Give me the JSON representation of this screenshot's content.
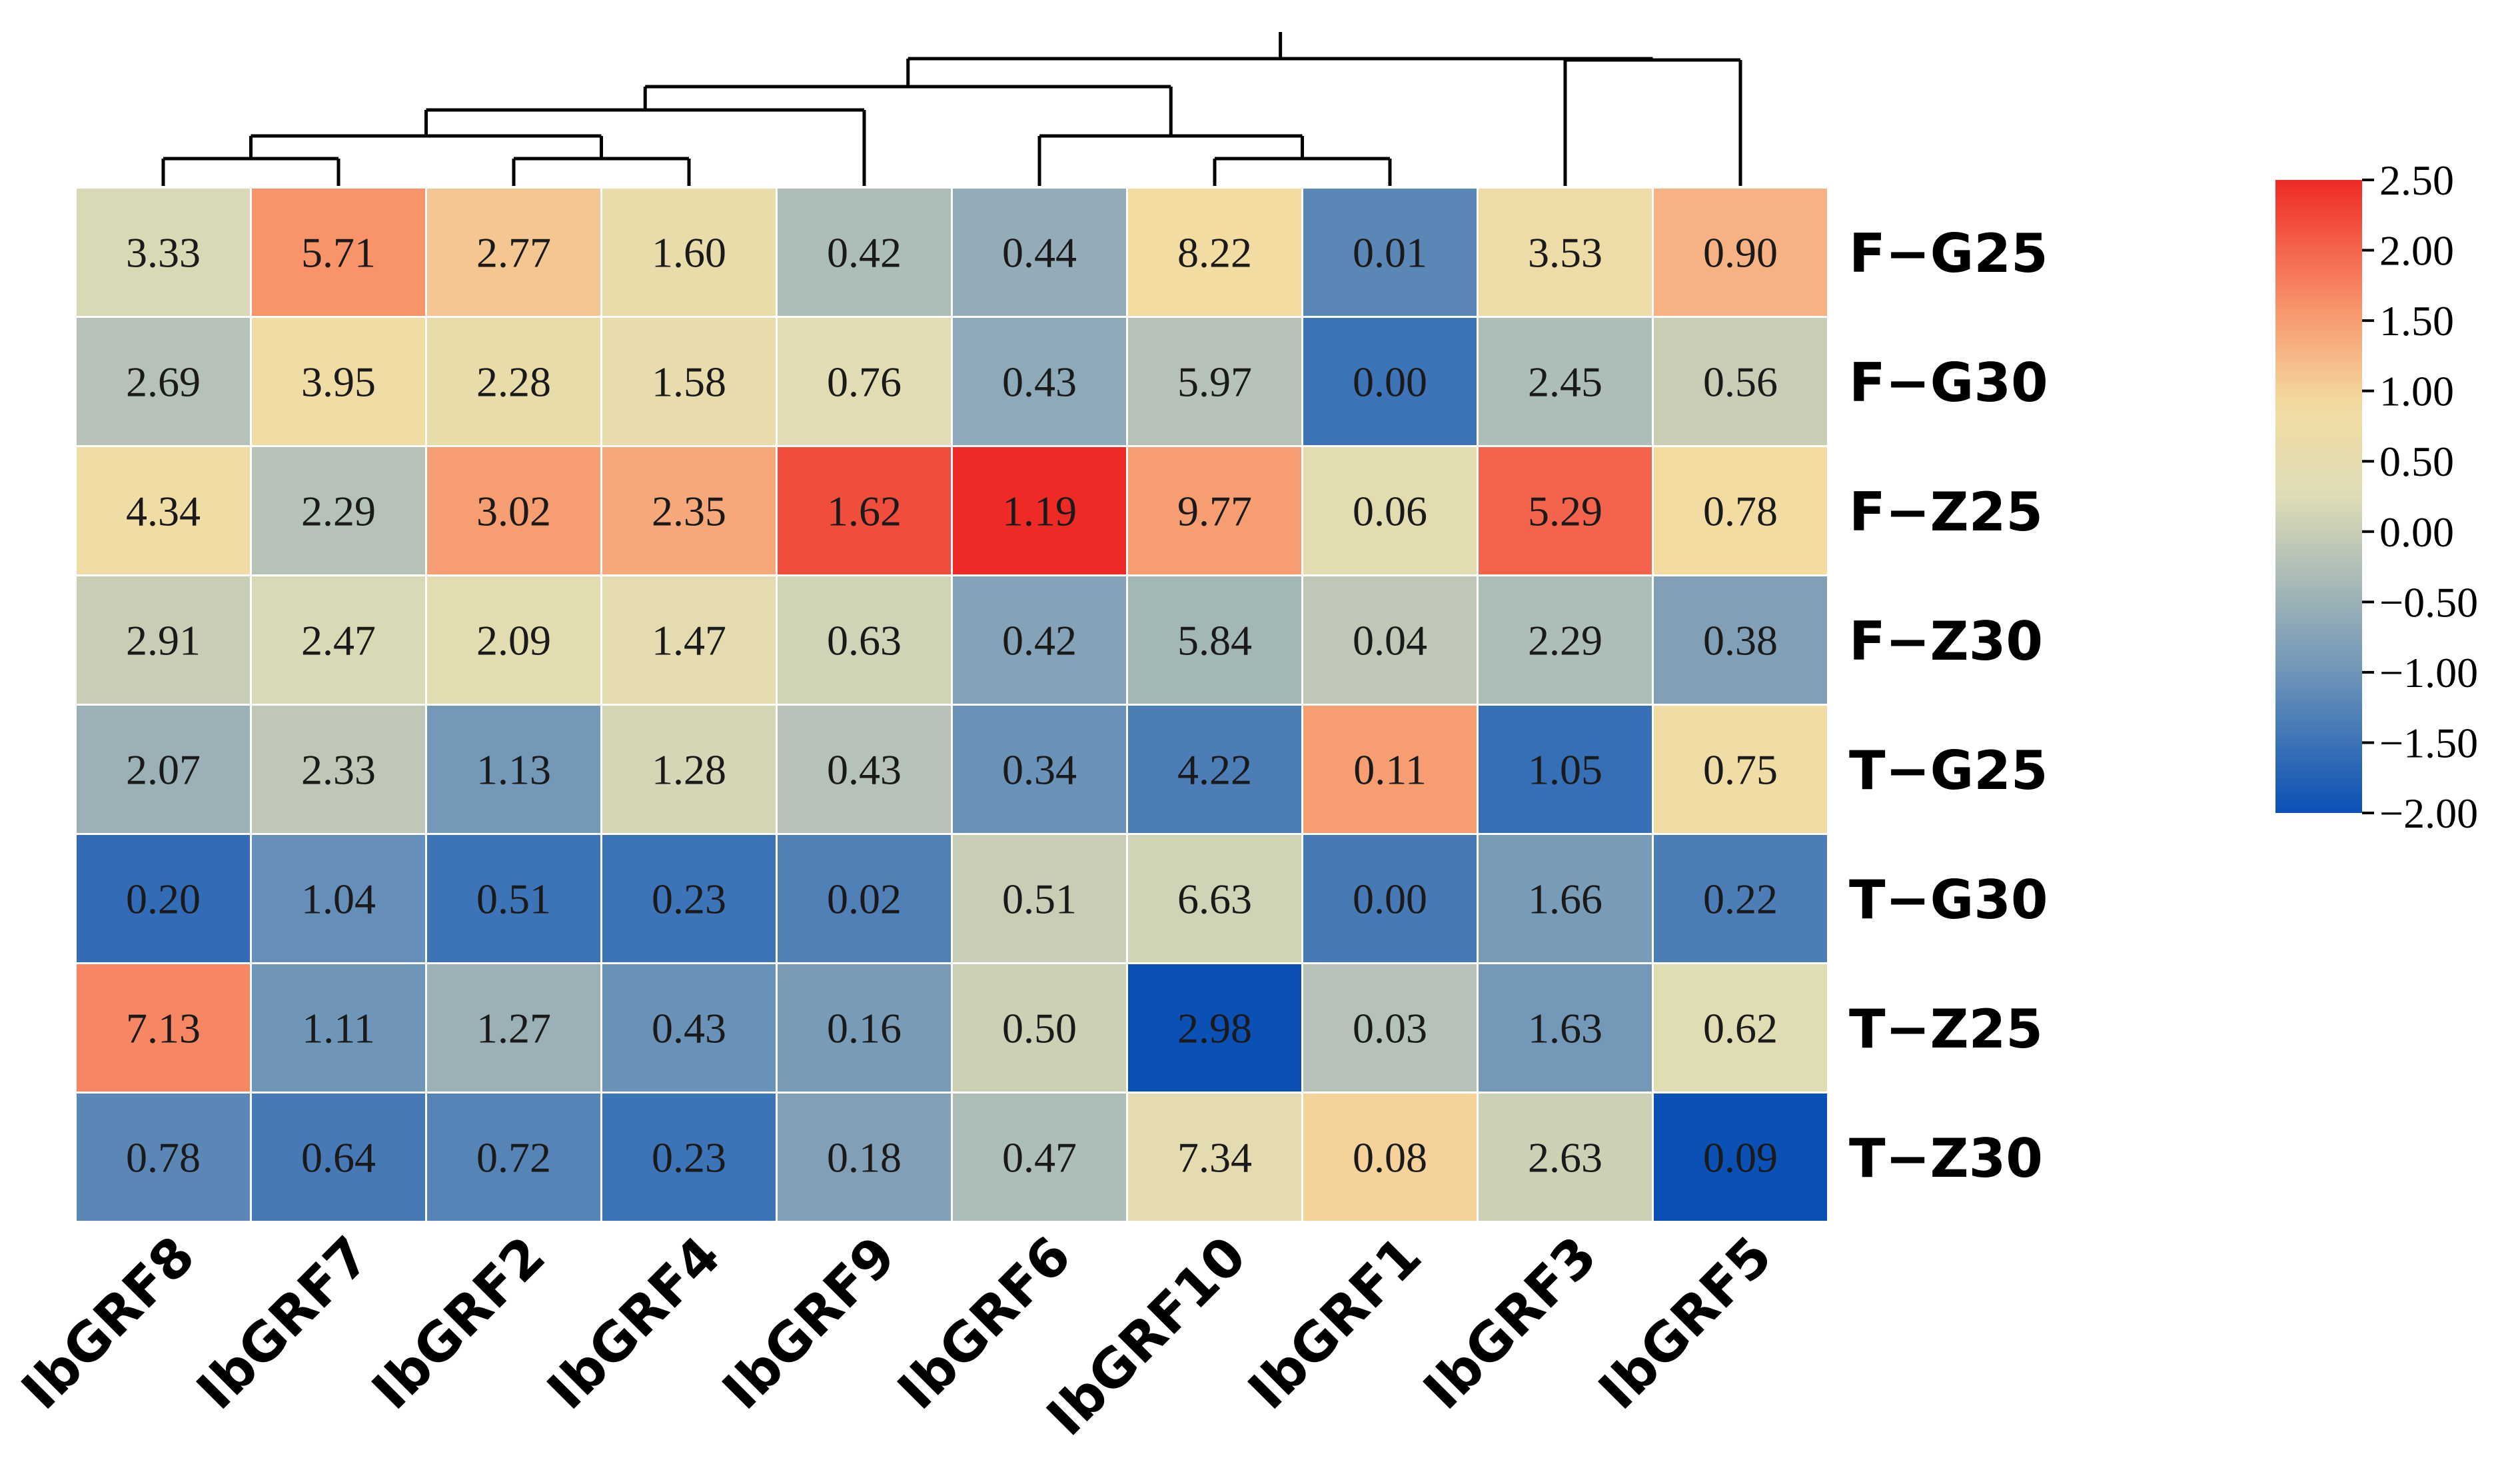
{
  "chart_data": {
    "type": "heatmap",
    "title": "",
    "rows": [
      "F−G25",
      "F−G30",
      "F−Z25",
      "F−Z30",
      "T−G25",
      "T−G30",
      "T−Z25",
      "T−Z30"
    ],
    "columns": [
      "IbGRF8",
      "IbGRF7",
      "IbGRF2",
      "IbGRF4",
      "IbGRF9",
      "IbGRF6",
      "IbGRF10",
      "IbGRF1",
      "IbGRF3",
      "IbGRF5"
    ],
    "values": [
      [
        "3.33",
        "5.71",
        "2.77",
        "1.60",
        "0.42",
        "0.44",
        "8.22",
        "0.01",
        "3.53",
        "0.90"
      ],
      [
        "2.69",
        "3.95",
        "2.28",
        "1.58",
        "0.76",
        "0.43",
        "5.97",
        "0.00",
        "2.45",
        "0.56"
      ],
      [
        "4.34",
        "2.29",
        "3.02",
        "2.35",
        "1.62",
        "1.19",
        "9.77",
        "0.06",
        "5.29",
        "0.78"
      ],
      [
        "2.91",
        "2.47",
        "2.09",
        "1.47",
        "0.63",
        "0.42",
        "5.84",
        "0.04",
        "2.29",
        "0.38"
      ],
      [
        "2.07",
        "2.33",
        "1.13",
        "1.28",
        "0.43",
        "0.34",
        "4.22",
        "0.11",
        "1.05",
        "0.75"
      ],
      [
        "0.20",
        "1.04",
        "0.51",
        "0.23",
        "0.02",
        "0.51",
        "6.63",
        "0.00",
        "1.66",
        "0.22"
      ],
      [
        "7.13",
        "1.11",
        "1.27",
        "0.43",
        "0.16",
        "0.50",
        "2.98",
        "0.03",
        "1.63",
        "0.62"
      ],
      [
        "0.78",
        "0.64",
        "0.72",
        "0.23",
        "0.18",
        "0.47",
        "7.34",
        "0.08",
        "2.63",
        "0.09"
      ]
    ],
    "color_scores": [
      [
        0.2,
        1.6,
        1.1,
        0.6,
        -0.3,
        -0.6,
        0.9,
        -1.2,
        0.7,
        1.3
      ],
      [
        -0.2,
        0.8,
        0.6,
        0.55,
        0.35,
        -0.65,
        -0.2,
        -1.5,
        -0.3,
        0.0
      ],
      [
        0.8,
        -0.2,
        1.5,
        1.4,
        2.2,
        2.5,
        1.5,
        0.4,
        2.0,
        0.9
      ],
      [
        0.0,
        0.2,
        0.4,
        0.45,
        0.1,
        -0.75,
        -0.4,
        -0.1,
        -0.3,
        -0.8
      ],
      [
        -0.5,
        -0.1,
        -0.95,
        0.15,
        -0.2,
        -1.05,
        -1.35,
        1.5,
        -1.55,
        0.8
      ],
      [
        -1.6,
        -1.1,
        -1.5,
        -1.5,
        -1.3,
        0.0,
        0.1,
        -1.4,
        -0.9,
        -1.35
      ],
      [
        1.7,
        -1.0,
        -0.5,
        -1.05,
        -0.9,
        0.05,
        -2.0,
        -0.2,
        -0.95,
        0.3
      ],
      [
        -1.2,
        -1.4,
        -1.25,
        -1.5,
        -0.8,
        -0.3,
        0.45,
        1.0,
        0.05,
        -2.0
      ]
    ],
    "colorbar": {
      "range": [
        -2.0,
        2.5
      ],
      "ticks": [
        2.5,
        2.0,
        1.5,
        1.0,
        0.5,
        0.0,
        -0.5,
        -1.0,
        -1.5,
        -2.0
      ],
      "tick_labels": [
        "2.50",
        "2.00",
        "1.50",
        "1.00",
        "0.50",
        "0.00",
        "−0.50",
        "−1.00",
        "−1.50",
        "−2.00"
      ],
      "colors": {
        "low": "#0a50b5",
        "mid_low": "#6f95b8",
        "mid": "#dedcb6",
        "mid_high": "#f3dca2",
        "high_mid": "#f8936a",
        "high": "#ee2a26"
      }
    },
    "column_dendrogram": [
      {
        "a": 0,
        "b": 1,
        "h": 1
      },
      {
        "a": 2,
        "b": 3,
        "h": 1
      },
      {
        "a": 6,
        "b": 7,
        "h": 1
      },
      {
        "a": "0-1",
        "b": "2-3",
        "h": 2
      },
      {
        "a": 5,
        "b": "6-7",
        "h": 2
      },
      {
        "a": "0-3",
        "b": 4,
        "h": 3
      },
      {
        "a": "0-4",
        "b": "5-7",
        "h": 4
      },
      {
        "a": 8,
        "b": 9,
        "h": 5
      },
      {
        "a": "0-7",
        "b": "8-9",
        "h": 6
      }
    ]
  }
}
